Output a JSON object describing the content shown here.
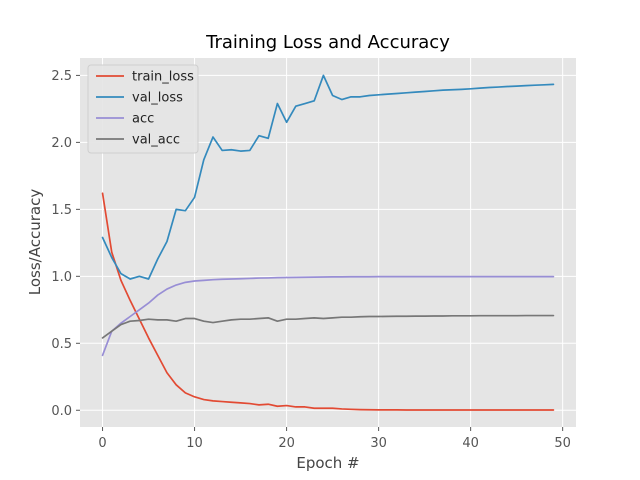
{
  "chart_data": {
    "type": "line",
    "title": "Training Loss and Accuracy",
    "xlabel": "Epoch #",
    "ylabel": "Loss/Accuracy",
    "xlim": [
      -2.45,
      51.45
    ],
    "ylim": [
      -0.125,
      2.63
    ],
    "xticks": [
      0,
      10,
      20,
      30,
      40,
      50
    ],
    "yticks": [
      0.0,
      0.5,
      1.0,
      1.5,
      2.0,
      2.5
    ],
    "xtick_labels": [
      "0",
      "10",
      "20",
      "30",
      "40",
      "50"
    ],
    "ytick_labels": [
      "0.0",
      "0.5",
      "1.0",
      "1.5",
      "2.0",
      "2.5"
    ],
    "grid": true,
    "legend_position": "top-left",
    "x": [
      0,
      1,
      2,
      3,
      4,
      5,
      6,
      7,
      8,
      9,
      10,
      11,
      12,
      13,
      14,
      15,
      16,
      17,
      18,
      19,
      20,
      21,
      22,
      23,
      24,
      25,
      26,
      27,
      28,
      29,
      30,
      31,
      32,
      33,
      34,
      35,
      36,
      37,
      38,
      39,
      40,
      41,
      42,
      43,
      44,
      45,
      46,
      47,
      48,
      49
    ],
    "series": [
      {
        "name": "train_loss",
        "color": "#e24a33",
        "values": [
          1.62,
          1.18,
          0.97,
          0.82,
          0.68,
          0.54,
          0.41,
          0.28,
          0.19,
          0.13,
          0.1,
          0.08,
          0.07,
          0.065,
          0.06,
          0.055,
          0.05,
          0.04,
          0.045,
          0.03,
          0.035,
          0.025,
          0.025,
          0.015,
          0.015,
          0.015,
          0.01,
          0.007,
          0.005,
          0.004,
          0.003,
          0.003,
          0.003,
          0.002,
          0.002,
          0.002,
          0.002,
          0.002,
          0.002,
          0.002,
          0.002,
          0.002,
          0.002,
          0.002,
          0.002,
          0.002,
          0.002,
          0.002,
          0.002,
          0.002
        ]
      },
      {
        "name": "val_loss",
        "color": "#348abd",
        "values": [
          1.29,
          1.14,
          1.02,
          0.98,
          1.0,
          0.98,
          1.13,
          1.26,
          1.5,
          1.49,
          1.59,
          1.87,
          2.04,
          1.94,
          1.945,
          1.935,
          1.94,
          2.05,
          2.03,
          2.29,
          2.15,
          2.27,
          2.29,
          2.31,
          2.5,
          2.35,
          2.32,
          2.34,
          2.34,
          2.35,
          2.355,
          2.36,
          2.365,
          2.37,
          2.375,
          2.38,
          2.385,
          2.39,
          2.393,
          2.396,
          2.4,
          2.405,
          2.41,
          2.413,
          2.417,
          2.42,
          2.424,
          2.427,
          2.43,
          2.433
        ]
      },
      {
        "name": "acc",
        "color": "#988ed5",
        "values": [
          0.41,
          0.59,
          0.65,
          0.7,
          0.75,
          0.8,
          0.86,
          0.905,
          0.935,
          0.955,
          0.965,
          0.97,
          0.975,
          0.978,
          0.98,
          0.982,
          0.984,
          0.987,
          0.988,
          0.99,
          0.991,
          0.992,
          0.993,
          0.994,
          0.995,
          0.996,
          0.996,
          0.997,
          0.997,
          0.997,
          0.998,
          0.998,
          0.998,
          0.998,
          0.998,
          0.998,
          0.998,
          0.998,
          0.998,
          0.998,
          0.998,
          0.998,
          0.998,
          0.998,
          0.998,
          0.998,
          0.998,
          0.998,
          0.998,
          0.998
        ]
      },
      {
        "name": "val_acc",
        "color": "#777777",
        "values": [
          0.54,
          0.59,
          0.64,
          0.665,
          0.67,
          0.68,
          0.675,
          0.675,
          0.665,
          0.685,
          0.685,
          0.665,
          0.655,
          0.665,
          0.675,
          0.68,
          0.68,
          0.685,
          0.69,
          0.665,
          0.68,
          0.68,
          0.685,
          0.69,
          0.685,
          0.69,
          0.695,
          0.695,
          0.698,
          0.7,
          0.7,
          0.701,
          0.702,
          0.702,
          0.703,
          0.703,
          0.704,
          0.704,
          0.705,
          0.705,
          0.705,
          0.706,
          0.706,
          0.706,
          0.706,
          0.706,
          0.707,
          0.707,
          0.707,
          0.707
        ]
      }
    ]
  }
}
